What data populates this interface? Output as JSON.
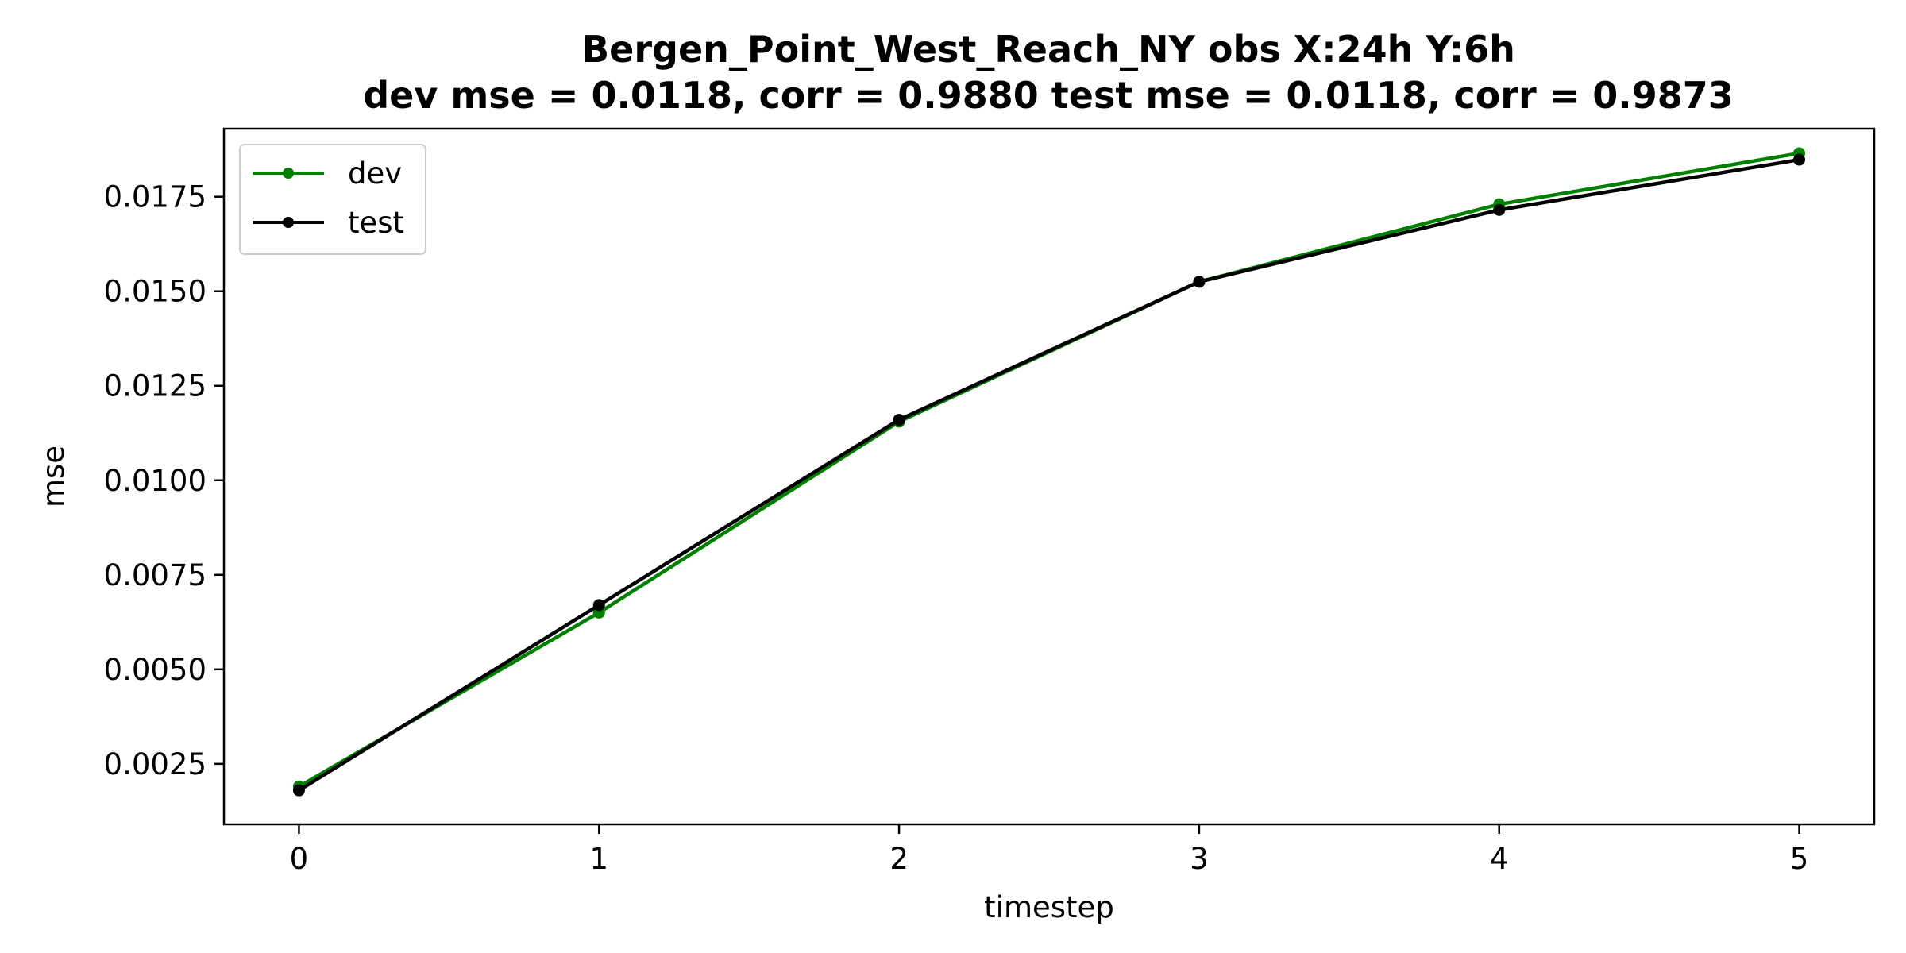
{
  "chart_data": {
    "type": "line",
    "title_line1": "Bergen_Point_West_Reach_NY   obs   X:24h   Y:6h",
    "title_line2": "dev mse = 0.0118, corr = 0.9880   test mse = 0.0118, corr = 0.9873",
    "xlabel": "timestep",
    "ylabel": "mse",
    "x": [
      0,
      1,
      2,
      3,
      4,
      5
    ],
    "xlim": [
      -0.25,
      5.25
    ],
    "ylim": [
      0.0009,
      0.0193
    ],
    "xticks": [
      "0",
      "1",
      "2",
      "3",
      "4",
      "5"
    ],
    "yticks": [
      0.0025,
      0.005,
      0.0075,
      0.01,
      0.0125,
      0.015,
      0.0175
    ],
    "ytick_labels": [
      "0.0025",
      "0.0050",
      "0.0075",
      "0.0100",
      "0.0125",
      "0.0150",
      "0.0175"
    ],
    "grid": false,
    "legend_position": "top-left",
    "series": [
      {
        "name": "dev",
        "color": "#008000",
        "values": [
          0.0019,
          0.0065,
          0.01155,
          0.01525,
          0.0173,
          0.01865
        ]
      },
      {
        "name": "test",
        "color": "#000000",
        "values": [
          0.0018,
          0.0067,
          0.0116,
          0.01525,
          0.01715,
          0.01848
        ]
      }
    ]
  }
}
